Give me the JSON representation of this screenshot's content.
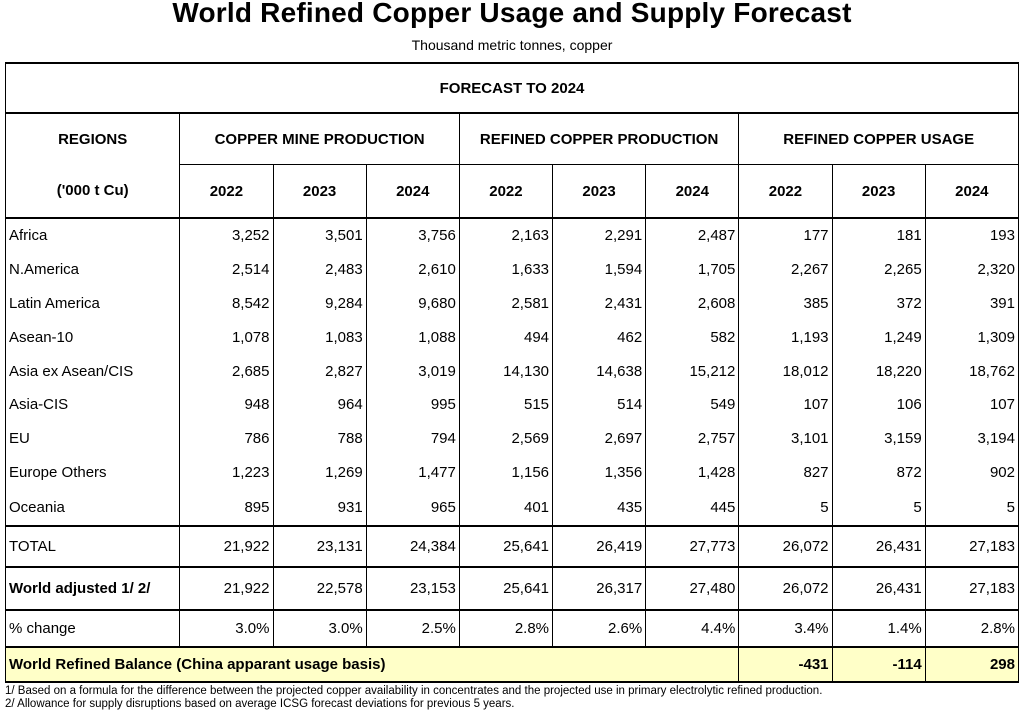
{
  "title": "World Refined Copper Usage and Supply Forecast",
  "subtitle": "Thousand metric tonnes, copper",
  "table": {
    "banner": "FORECAST TO 2024",
    "regions_label": "REGIONS",
    "units_label": "('000 t Cu)",
    "groups": [
      "COPPER MINE PRODUCTION",
      "REFINED COPPER PRODUCTION",
      "REFINED COPPER USAGE"
    ],
    "years": [
      "2022",
      "2023",
      "2024"
    ],
    "rows": [
      {
        "region": "Africa",
        "values": [
          "3,252",
          "3,501",
          "3,756",
          "2,163",
          "2,291",
          "2,487",
          "177",
          "181",
          "193"
        ]
      },
      {
        "region": "N.America",
        "values": [
          "2,514",
          "2,483",
          "2,610",
          "1,633",
          "1,594",
          "1,705",
          "2,267",
          "2,265",
          "2,320"
        ]
      },
      {
        "region": "Latin America",
        "values": [
          "8,542",
          "9,284",
          "9,680",
          "2,581",
          "2,431",
          "2,608",
          "385",
          "372",
          "391"
        ]
      },
      {
        "region": "Asean-10",
        "values": [
          "1,078",
          "1,083",
          "1,088",
          "494",
          "462",
          "582",
          "1,193",
          "1,249",
          "1,309"
        ]
      },
      {
        "region": "Asia ex Asean/CIS",
        "values": [
          "2,685",
          "2,827",
          "3,019",
          "14,130",
          "14,638",
          "15,212",
          "18,012",
          "18,220",
          "18,762"
        ]
      },
      {
        "region": "Asia-CIS",
        "values": [
          "948",
          "964",
          "995",
          "515",
          "514",
          "549",
          "107",
          "106",
          "107"
        ]
      },
      {
        "region": "EU",
        "values": [
          "786",
          "788",
          "794",
          "2,569",
          "2,697",
          "2,757",
          "3,101",
          "3,159",
          "3,194"
        ]
      },
      {
        "region": "Europe Others",
        "values": [
          "1,223",
          "1,269",
          "1,477",
          "1,156",
          "1,356",
          "1,428",
          "827",
          "872",
          "902"
        ]
      },
      {
        "region": "Oceania",
        "values": [
          "895",
          "931",
          "965",
          "401",
          "435",
          "445",
          "5",
          "5",
          "5"
        ]
      }
    ],
    "total": {
      "label": "TOTAL",
      "values": [
        "21,922",
        "23,131",
        "24,384",
        "25,641",
        "26,419",
        "27,773",
        "26,072",
        "26,431",
        "27,183"
      ]
    },
    "world_adjusted": {
      "label": "World adjusted 1/ 2/",
      "values": [
        "21,922",
        "22,578",
        "23,153",
        "25,641",
        "26,317",
        "27,480",
        "26,072",
        "26,431",
        "27,183"
      ]
    },
    "pct_change": {
      "label": "% change",
      "values": [
        "3.0%",
        "3.0%",
        "2.5%",
        "2.8%",
        "2.6%",
        "4.4%",
        "3.4%",
        "1.4%",
        "2.8%"
      ]
    },
    "balance": {
      "label": "World Refined Balance (China apparant usage basis)",
      "values": [
        "-431",
        "-114",
        "298"
      ]
    }
  },
  "footnotes": [
    "1/ Based on a formula for the difference between the projected copper availability in concentrates and the projected use in primary electrolytic refined production.",
    "2/ Allowance for supply disruptions based on average ICSG forecast deviations for previous 5 years."
  ],
  "colors": {
    "balance_highlight": "#ffffc8"
  }
}
